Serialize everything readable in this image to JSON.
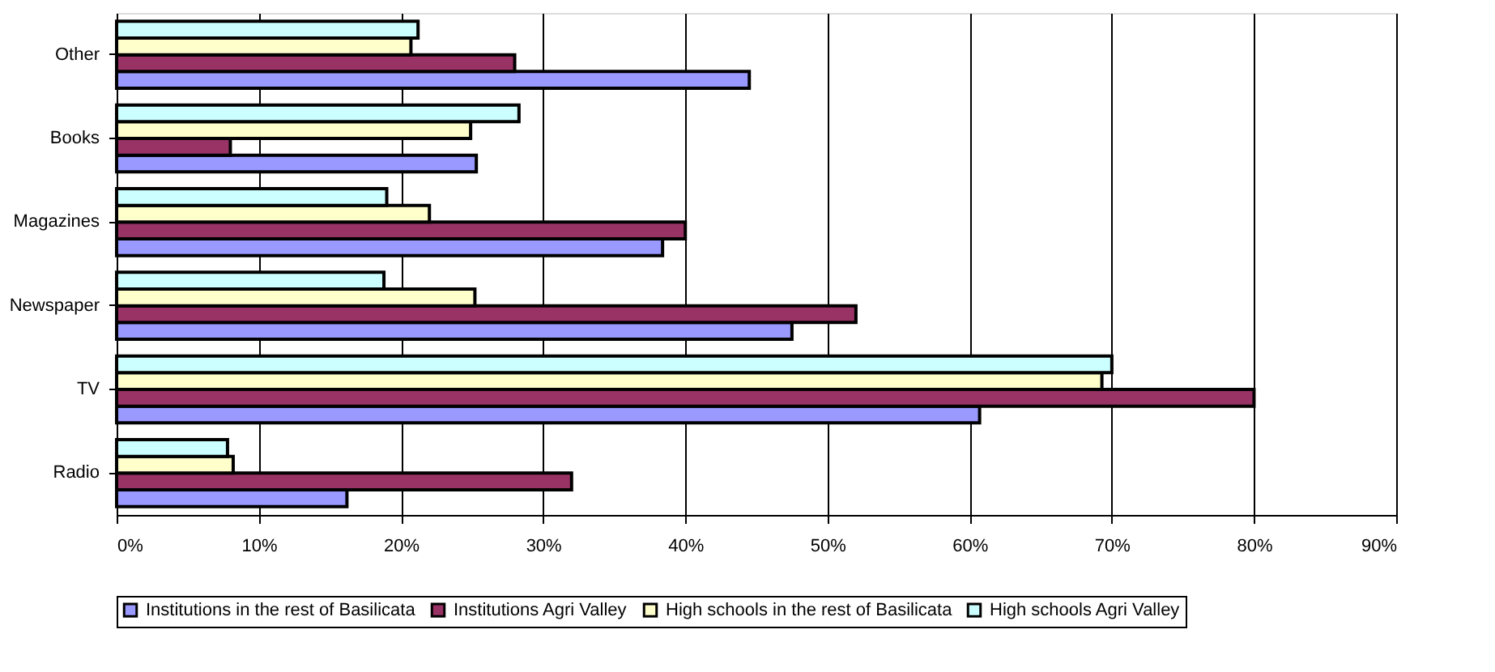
{
  "chart_data": {
    "type": "bar",
    "orientation": "horizontal",
    "categories": [
      "Other",
      "Books",
      "Magazines",
      "Newspaper",
      "TV",
      "Radio"
    ],
    "series": [
      {
        "name": "Institutions in the rest of Basilicata",
        "color": "#9999ff",
        "values": [
          44.5,
          25.3,
          38.4,
          47.5,
          60.7,
          16.2
        ]
      },
      {
        "name": "Institutions Agri Valley",
        "color": "#993366",
        "values": [
          28,
          8,
          40,
          52,
          80,
          32
        ]
      },
      {
        "name": "High schools in the rest of Basilicata",
        "color": "#ffffcc",
        "values": [
          20.7,
          24.9,
          22,
          25.2,
          69.3,
          8.2
        ]
      },
      {
        "name": "High schools Agri Valley",
        "color": "#ccffff",
        "values": [
          21.2,
          28.3,
          19,
          18.8,
          70,
          7.8
        ]
      }
    ],
    "xlim": [
      0,
      90
    ],
    "xticks": [
      {
        "value": 0,
        "label": "0%"
      },
      {
        "value": 10,
        "label": "10%"
      },
      {
        "value": 20,
        "label": "20%"
      },
      {
        "value": 30,
        "label": "30%"
      },
      {
        "value": 40,
        "label": "40%"
      },
      {
        "value": 50,
        "label": "50%"
      },
      {
        "value": 60,
        "label": "60%"
      },
      {
        "value": 70,
        "label": "70%"
      },
      {
        "value": 80,
        "label": "80%"
      },
      {
        "value": 90,
        "label": "90%"
      }
    ],
    "grid": "x",
    "legend": "bottom"
  }
}
